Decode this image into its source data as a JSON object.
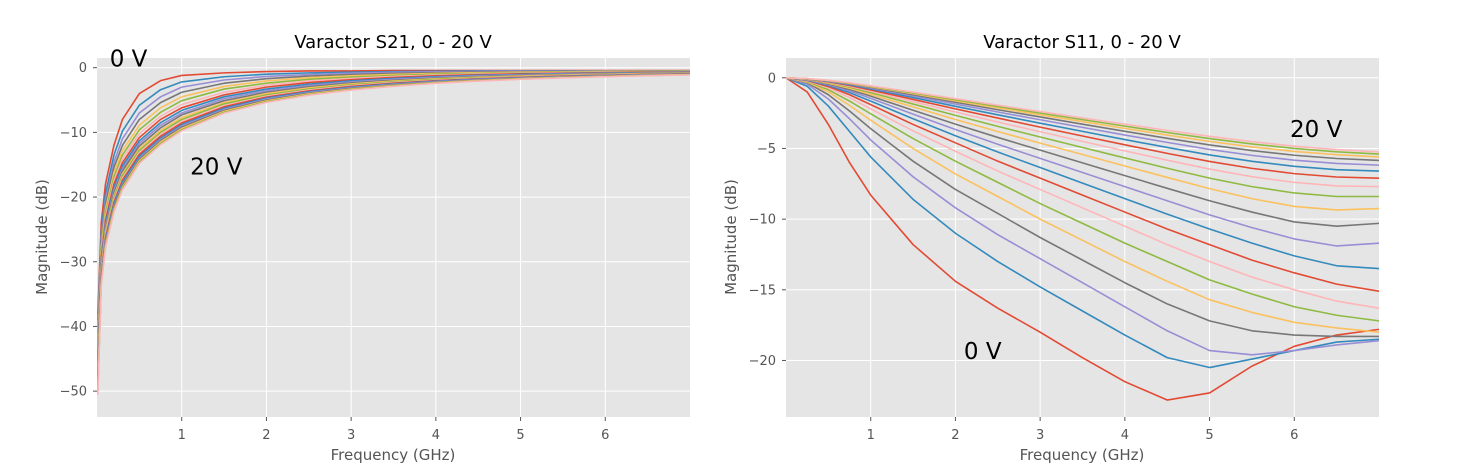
{
  "palette": [
    "#E24A33",
    "#348ABD",
    "#988ED5",
    "#777777",
    "#FBC15E",
    "#8EBA42",
    "#FFB5B8"
  ],
  "chart_data": [
    {
      "type": "line",
      "title": "Varactor S21, 0 - 20 V",
      "xlabel": "Frequency (GHz)",
      "ylabel": "Magnitude (dB)",
      "xlim": [
        0.0,
        7.0
      ],
      "ylim": [
        -54,
        1.5
      ],
      "xticks": [
        1,
        2,
        3,
        4,
        5,
        6
      ],
      "yticks": [
        0,
        -10,
        -20,
        -30,
        -40,
        -50
      ],
      "grid": true,
      "x": [
        0.01,
        0.05,
        0.1,
        0.2,
        0.3,
        0.5,
        0.75,
        1.0,
        1.5,
        2.0,
        2.5,
        3.0,
        3.5,
        4.0,
        4.5,
        5.0,
        5.5,
        6.0,
        6.5,
        7.0
      ],
      "series": [
        {
          "values": [
            -38.0,
            -24.0,
            -18.0,
            -12.0,
            -8.0,
            -4.0,
            -2.0,
            -1.2,
            -0.8,
            -0.6,
            -0.5,
            -0.5,
            -0.45,
            -0.45,
            -0.45,
            -0.45,
            -0.45,
            -0.45,
            -0.45,
            -0.45
          ]
        },
        {
          "values": [
            -39.0,
            -25.5,
            -19.5,
            -13.5,
            -9.8,
            -5.8,
            -3.4,
            -2.2,
            -1.4,
            -1.0,
            -0.8,
            -0.7,
            -0.6,
            -0.55,
            -0.5,
            -0.5,
            -0.5,
            -0.5,
            -0.5,
            -0.5
          ]
        },
        {
          "values": [
            -40.0,
            -26.3,
            -20.4,
            -14.6,
            -11.0,
            -7.0,
            -4.5,
            -3.0,
            -1.9,
            -1.35,
            -1.05,
            -0.85,
            -0.72,
            -0.63,
            -0.57,
            -0.53,
            -0.5,
            -0.5,
            -0.5,
            -0.5
          ]
        },
        {
          "values": [
            -41.0,
            -27.0,
            -21.2,
            -15.4,
            -12.0,
            -8.0,
            -5.4,
            -3.8,
            -2.4,
            -1.7,
            -1.3,
            -1.05,
            -0.88,
            -0.76,
            -0.67,
            -0.61,
            -0.56,
            -0.53,
            -0.52,
            -0.51
          ]
        },
        {
          "values": [
            -42.0,
            -27.7,
            -21.9,
            -16.2,
            -12.8,
            -8.9,
            -6.2,
            -4.5,
            -2.9,
            -2.05,
            -1.55,
            -1.25,
            -1.03,
            -0.88,
            -0.77,
            -0.69,
            -0.63,
            -0.58,
            -0.55,
            -0.53
          ]
        },
        {
          "values": [
            -43.0,
            -28.3,
            -22.5,
            -16.9,
            -13.5,
            -9.6,
            -6.9,
            -5.1,
            -3.3,
            -2.4,
            -1.8,
            -1.45,
            -1.2,
            -1.0,
            -0.88,
            -0.78,
            -0.7,
            -0.64,
            -0.6,
            -0.57
          ]
        },
        {
          "values": [
            -43.5,
            -28.9,
            -23.1,
            -17.5,
            -14.1,
            -10.2,
            -7.5,
            -5.7,
            -3.8,
            -2.7,
            -2.05,
            -1.65,
            -1.35,
            -1.13,
            -0.98,
            -0.86,
            -0.77,
            -0.7,
            -0.65,
            -0.61
          ]
        },
        {
          "values": [
            -44.0,
            -29.4,
            -23.6,
            -18.0,
            -14.7,
            -10.8,
            -8.0,
            -6.2,
            -4.2,
            -3.0,
            -2.3,
            -1.85,
            -1.5,
            -1.26,
            -1.08,
            -0.95,
            -0.84,
            -0.76,
            -0.7,
            -0.65
          ]
        },
        {
          "values": [
            -44.5,
            -29.9,
            -24.1,
            -18.5,
            -15.2,
            -11.3,
            -8.5,
            -6.6,
            -4.5,
            -3.3,
            -2.55,
            -2.03,
            -1.65,
            -1.38,
            -1.18,
            -1.03,
            -0.91,
            -0.82,
            -0.75,
            -0.7
          ]
        },
        {
          "values": [
            -45.0,
            -30.3,
            -24.5,
            -19.0,
            -15.6,
            -11.7,
            -8.9,
            -7.0,
            -4.8,
            -3.55,
            -2.75,
            -2.2,
            -1.8,
            -1.5,
            -1.28,
            -1.11,
            -0.98,
            -0.88,
            -0.8,
            -0.74
          ]
        },
        {
          "values": [
            -45.5,
            -30.7,
            -24.9,
            -19.4,
            -16.0,
            -12.1,
            -9.3,
            -7.3,
            -5.1,
            -3.8,
            -2.95,
            -2.36,
            -1.94,
            -1.62,
            -1.38,
            -1.19,
            -1.05,
            -0.94,
            -0.85,
            -0.78
          ]
        },
        {
          "values": [
            -46.0,
            -31.1,
            -25.3,
            -19.8,
            -16.4,
            -12.5,
            -9.7,
            -7.7,
            -5.4,
            -4.0,
            -3.12,
            -2.5,
            -2.06,
            -1.72,
            -1.47,
            -1.27,
            -1.12,
            -1.0,
            -0.9,
            -0.82
          ]
        },
        {
          "values": [
            -46.5,
            -31.5,
            -25.7,
            -20.1,
            -16.7,
            -12.8,
            -10.0,
            -8.0,
            -5.6,
            -4.2,
            -3.3,
            -2.65,
            -2.18,
            -1.82,
            -1.55,
            -1.34,
            -1.18,
            -1.05,
            -0.95,
            -0.86
          ]
        },
        {
          "values": [
            -47.0,
            -31.8,
            -26.0,
            -20.5,
            -17.1,
            -13.1,
            -10.3,
            -8.3,
            -5.85,
            -4.4,
            -3.45,
            -2.78,
            -2.29,
            -1.92,
            -1.63,
            -1.41,
            -1.24,
            -1.1,
            -0.99,
            -0.9
          ]
        },
        {
          "values": [
            -47.5,
            -32.1,
            -26.3,
            -20.8,
            -17.4,
            -13.4,
            -10.6,
            -8.55,
            -6.05,
            -4.55,
            -3.58,
            -2.9,
            -2.39,
            -2.0,
            -1.71,
            -1.48,
            -1.3,
            -1.15,
            -1.03,
            -0.93
          ]
        },
        {
          "values": [
            -48.0,
            -32.4,
            -26.6,
            -21.1,
            -17.7,
            -13.7,
            -10.9,
            -8.8,
            -6.25,
            -4.7,
            -3.71,
            -3.0,
            -2.48,
            -2.08,
            -1.78,
            -1.54,
            -1.35,
            -1.2,
            -1.07,
            -0.97
          ]
        },
        {
          "values": [
            -48.5,
            -32.7,
            -26.9,
            -21.4,
            -18.0,
            -14.0,
            -11.1,
            -9.0,
            -6.45,
            -4.85,
            -3.83,
            -3.1,
            -2.57,
            -2.16,
            -1.84,
            -1.6,
            -1.4,
            -1.24,
            -1.11,
            -1.0
          ]
        },
        {
          "values": [
            -49.0,
            -33.0,
            -27.2,
            -21.6,
            -18.2,
            -14.2,
            -11.3,
            -9.2,
            -6.6,
            -5.0,
            -3.95,
            -3.2,
            -2.65,
            -2.23,
            -1.9,
            -1.65,
            -1.45,
            -1.28,
            -1.15,
            -1.03
          ]
        },
        {
          "values": [
            -49.5,
            -33.3,
            -27.4,
            -21.9,
            -18.5,
            -14.4,
            -11.5,
            -9.4,
            -6.75,
            -5.13,
            -4.06,
            -3.3,
            -2.73,
            -2.3,
            -1.96,
            -1.7,
            -1.49,
            -1.32,
            -1.18,
            -1.06
          ]
        },
        {
          "values": [
            -50.0,
            -33.5,
            -27.6,
            -22.1,
            -18.7,
            -14.6,
            -11.7,
            -9.6,
            -6.9,
            -5.25,
            -4.16,
            -3.38,
            -2.8,
            -2.36,
            -2.02,
            -1.75,
            -1.53,
            -1.35,
            -1.21,
            -1.09
          ]
        },
        {
          "values": [
            -50.5,
            -33.7,
            -27.8,
            -22.3,
            -18.9,
            -14.8,
            -11.9,
            -9.75,
            -7.02,
            -5.36,
            -4.25,
            -3.46,
            -2.87,
            -2.42,
            -2.07,
            -1.79,
            -1.57,
            -1.39,
            -1.24,
            -1.12
          ]
        }
      ],
      "annotations": [
        {
          "text": "0 V",
          "x": 0.15,
          "y": 0.2
        },
        {
          "text": "20 V",
          "x": 1.1,
          "y": -16.5
        }
      ]
    },
    {
      "type": "line",
      "title": "Varactor S11, 0 - 20 V",
      "xlabel": "Frequency (GHz)",
      "ylabel": "Magnitude (dB)",
      "xlim": [
        0.0,
        7.0
      ],
      "ylim": [
        -24.0,
        1.4
      ],
      "xticks": [
        1,
        2,
        3,
        4,
        5,
        6
      ],
      "yticks": [
        0,
        -5,
        -10,
        -15,
        -20
      ],
      "grid": true,
      "x": [
        0.0,
        0.25,
        0.5,
        0.75,
        1.0,
        1.5,
        2.0,
        2.5,
        3.0,
        3.5,
        4.0,
        4.5,
        5.0,
        5.5,
        6.0,
        6.5,
        7.0
      ],
      "series": [
        {
          "values": [
            0.0,
            -1.0,
            -3.3,
            -6.0,
            -8.3,
            -11.8,
            -14.4,
            -16.3,
            -18.0,
            -19.8,
            -21.5,
            -22.8,
            -22.3,
            -20.4,
            -19.0,
            -18.2,
            -17.8
          ]
        },
        {
          "values": [
            0.0,
            -0.6,
            -2.0,
            -3.8,
            -5.6,
            -8.6,
            -11.0,
            -13.0,
            -14.8,
            -16.5,
            -18.2,
            -19.8,
            -20.5,
            -19.9,
            -19.3,
            -18.7,
            -18.5
          ]
        },
        {
          "values": [
            0.0,
            -0.45,
            -1.5,
            -2.9,
            -4.4,
            -7.0,
            -9.2,
            -11.1,
            -12.8,
            -14.5,
            -16.2,
            -17.9,
            -19.3,
            -19.6,
            -19.3,
            -18.9,
            -18.6
          ]
        },
        {
          "values": [
            0.0,
            -0.35,
            -1.2,
            -2.35,
            -3.6,
            -5.9,
            -7.9,
            -9.6,
            -11.3,
            -12.9,
            -14.5,
            -16.0,
            -17.2,
            -17.9,
            -18.2,
            -18.3,
            -18.3
          ]
        },
        {
          "values": [
            0.0,
            -0.3,
            -1.0,
            -1.95,
            -3.0,
            -5.0,
            -6.8,
            -8.4,
            -10.0,
            -11.5,
            -13.0,
            -14.4,
            -15.7,
            -16.6,
            -17.3,
            -17.7,
            -18.0
          ]
        },
        {
          "values": [
            0.0,
            -0.25,
            -0.85,
            -1.65,
            -2.55,
            -4.3,
            -5.9,
            -7.4,
            -8.9,
            -10.3,
            -11.7,
            -13.0,
            -14.3,
            -15.3,
            -16.2,
            -16.8,
            -17.2
          ]
        },
        {
          "values": [
            0.0,
            -0.22,
            -0.72,
            -1.4,
            -2.2,
            -3.75,
            -5.2,
            -6.6,
            -7.9,
            -9.2,
            -10.5,
            -11.8,
            -13.0,
            -14.1,
            -15.0,
            -15.8,
            -16.3
          ]
        },
        {
          "values": [
            0.0,
            -0.19,
            -0.62,
            -1.2,
            -1.9,
            -3.3,
            -4.6,
            -5.9,
            -7.1,
            -8.3,
            -9.5,
            -10.7,
            -11.8,
            -12.9,
            -13.8,
            -14.6,
            -15.1
          ]
        },
        {
          "values": [
            0.0,
            -0.17,
            -0.54,
            -1.05,
            -1.65,
            -2.9,
            -4.1,
            -5.25,
            -6.35,
            -7.45,
            -8.55,
            -9.65,
            -10.7,
            -11.7,
            -12.6,
            -13.3,
            -13.5
          ]
        },
        {
          "values": [
            0.0,
            -0.15,
            -0.48,
            -0.93,
            -1.46,
            -2.57,
            -3.66,
            -4.7,
            -5.7,
            -6.7,
            -7.7,
            -8.7,
            -9.7,
            -10.6,
            -11.4,
            -11.9,
            -11.7
          ]
        },
        {
          "values": [
            0.0,
            -0.13,
            -0.43,
            -0.83,
            -1.3,
            -2.3,
            -3.28,
            -4.22,
            -5.12,
            -6.02,
            -6.92,
            -7.82,
            -8.7,
            -9.5,
            -10.2,
            -10.5,
            -10.3
          ]
        },
        {
          "values": [
            0.0,
            -0.12,
            -0.38,
            -0.74,
            -1.17,
            -2.06,
            -2.95,
            -3.8,
            -4.62,
            -5.43,
            -6.24,
            -7.05,
            -7.84,
            -8.55,
            -9.1,
            -9.35,
            -9.25
          ]
        },
        {
          "values": [
            0.0,
            -0.11,
            -0.34,
            -0.66,
            -1.05,
            -1.86,
            -2.66,
            -3.44,
            -4.19,
            -4.93,
            -5.67,
            -6.4,
            -7.1,
            -7.7,
            -8.15,
            -8.4,
            -8.4
          ]
        },
        {
          "values": [
            0.0,
            -0.1,
            -0.31,
            -0.6,
            -0.95,
            -1.69,
            -2.42,
            -3.13,
            -3.82,
            -4.5,
            -5.17,
            -5.83,
            -6.46,
            -7.0,
            -7.4,
            -7.65,
            -7.7
          ]
        },
        {
          "values": [
            0.0,
            -0.09,
            -0.28,
            -0.54,
            -0.86,
            -1.53,
            -2.2,
            -2.85,
            -3.49,
            -4.12,
            -4.74,
            -5.35,
            -5.92,
            -6.41,
            -6.78,
            -7.02,
            -7.1
          ]
        },
        {
          "values": [
            0.0,
            -0.08,
            -0.25,
            -0.49,
            -0.78,
            -1.4,
            -2.02,
            -2.62,
            -3.21,
            -3.79,
            -4.37,
            -4.93,
            -5.46,
            -5.91,
            -6.26,
            -6.5,
            -6.6
          ]
        },
        {
          "values": [
            0.0,
            -0.075,
            -0.23,
            -0.45,
            -0.72,
            -1.29,
            -1.86,
            -2.42,
            -2.97,
            -3.51,
            -4.05,
            -4.57,
            -5.07,
            -5.49,
            -5.83,
            -6.06,
            -6.18
          ]
        },
        {
          "values": [
            0.0,
            -0.07,
            -0.21,
            -0.42,
            -0.67,
            -1.2,
            -1.73,
            -2.26,
            -2.77,
            -3.28,
            -3.79,
            -4.28,
            -4.75,
            -5.15,
            -5.48,
            -5.71,
            -5.85
          ]
        },
        {
          "values": [
            0.0,
            -0.065,
            -0.2,
            -0.39,
            -0.63,
            -1.13,
            -1.63,
            -2.13,
            -2.62,
            -3.1,
            -3.58,
            -4.05,
            -4.5,
            -4.89,
            -5.21,
            -5.44,
            -5.6
          ]
        },
        {
          "values": [
            0.0,
            -0.06,
            -0.19,
            -0.37,
            -0.6,
            -1.07,
            -1.55,
            -2.03,
            -2.5,
            -2.96,
            -3.42,
            -3.87,
            -4.3,
            -4.68,
            -5.0,
            -5.24,
            -5.4
          ]
        },
        {
          "values": [
            0.0,
            -0.057,
            -0.18,
            -0.35,
            -0.57,
            -1.02,
            -1.48,
            -1.94,
            -2.39,
            -2.84,
            -3.28,
            -3.72,
            -4.14,
            -4.52,
            -4.84,
            -5.08,
            -5.25
          ]
        }
      ],
      "annotations": [
        {
          "text": "0 V",
          "x": 2.1,
          "y": -19.9
        },
        {
          "text": "20 V",
          "x": 5.95,
          "y": -4.2
        }
      ]
    }
  ]
}
